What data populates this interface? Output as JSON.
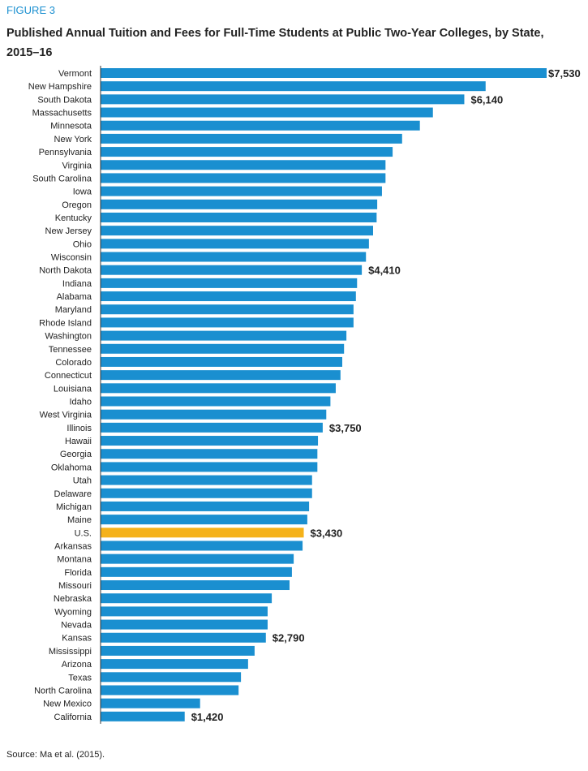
{
  "figure_label": "FIGURE 3",
  "source": "Source: Ma et al. (2015).",
  "chart_data": {
    "type": "bar",
    "orientation": "horizontal",
    "title": "Published Annual Tuition and Fees for Full-Time Students at Public Two-Year Colleges, by State, 2015–16",
    "xlim": [
      0,
      7530
    ],
    "grid": false,
    "colors": {
      "default": "#1a8fd0",
      "highlight": "#f5b21a"
    },
    "highlight": "U.S.",
    "categories": [
      "Vermont",
      "New Hampshire",
      "South Dakota",
      "Massachusetts",
      "Minnesota",
      "New York",
      "Pennsylvania",
      "Virginia",
      "South Carolina",
      "Iowa",
      "Oregon",
      "Kentucky",
      "New Jersey",
      "Ohio",
      "Wisconsin",
      "North Dakota",
      "Indiana",
      "Alabama",
      "Maryland",
      "Rhode Island",
      "Washington",
      "Tennessee",
      "Colorado",
      "Connecticut",
      "Louisiana",
      "Idaho",
      "West Virginia",
      "Illinois",
      "Hawaii",
      "Georgia",
      "Oklahoma",
      "Utah",
      "Delaware",
      "Michigan",
      "Maine",
      "U.S.",
      "Arkansas",
      "Montana",
      "Florida",
      "Missouri",
      "Nebraska",
      "Wyoming",
      "Nevada",
      "Kansas",
      "Mississippi",
      "Arizona",
      "Texas",
      "North Carolina",
      "New Mexico",
      "California"
    ],
    "values": [
      7530,
      6500,
      6140,
      5610,
      5390,
      5090,
      4930,
      4810,
      4810,
      4750,
      4670,
      4660,
      4600,
      4530,
      4480,
      4410,
      4330,
      4310,
      4270,
      4270,
      4150,
      4110,
      4080,
      4050,
      3970,
      3880,
      3810,
      3750,
      3670,
      3660,
      3660,
      3570,
      3570,
      3520,
      3490,
      3430,
      3410,
      3260,
      3230,
      3190,
      2890,
      2820,
      2820,
      2790,
      2600,
      2490,
      2370,
      2330,
      1680,
      1420
    ],
    "data_labels": {
      "Vermont": "$7,530",
      "South Dakota": "$6,140",
      "North Dakota": "$4,410",
      "Illinois": "$3,750",
      "U.S.": "$3,430",
      "Kansas": "$2,790",
      "California": "$1,420"
    }
  }
}
